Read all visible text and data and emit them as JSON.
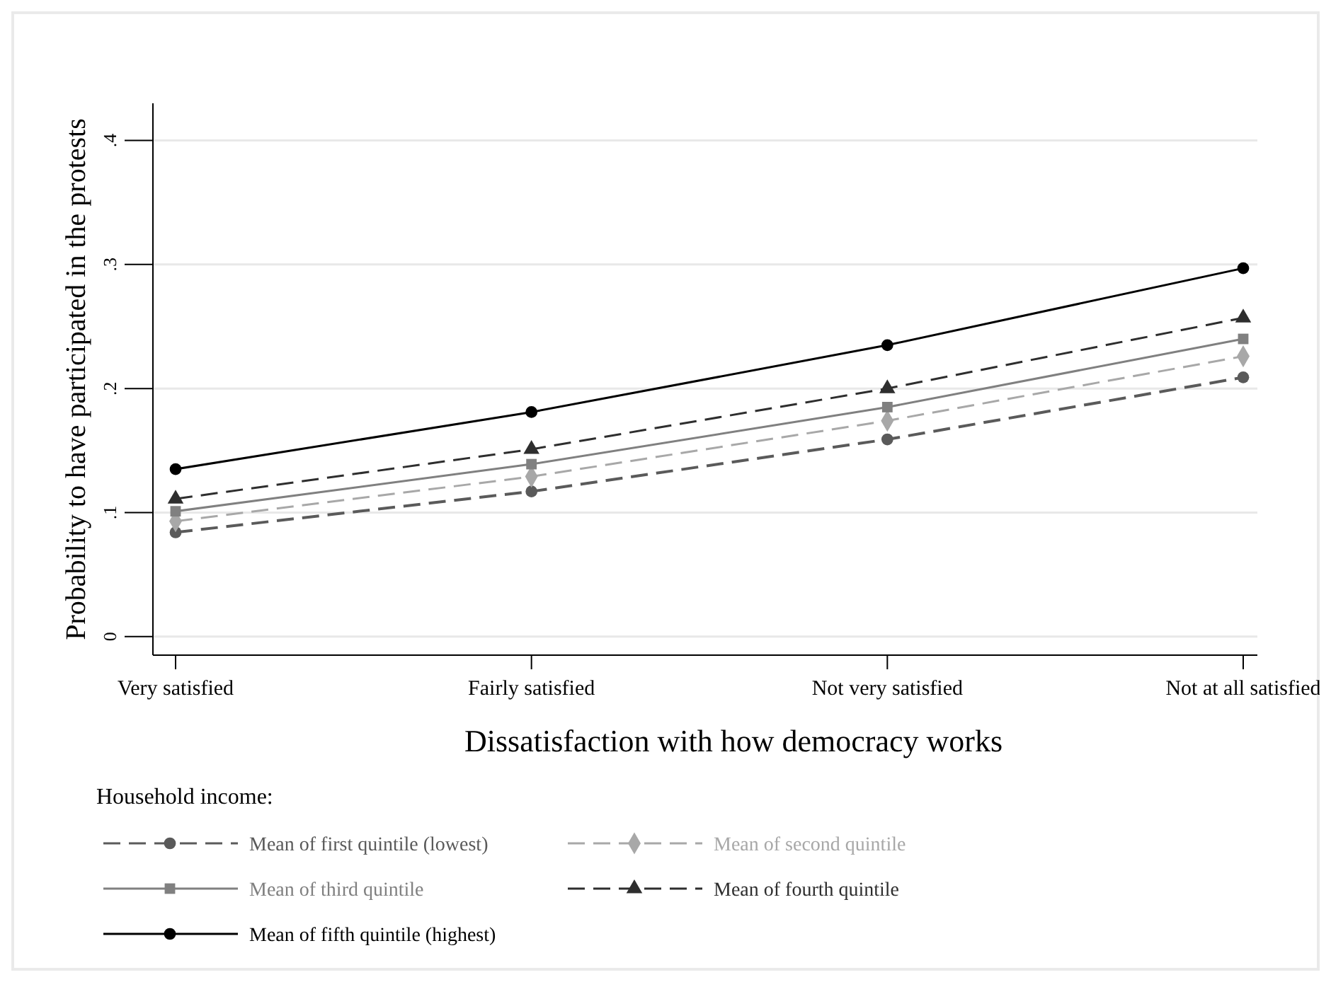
{
  "chart_data": {
    "type": "line",
    "xlabel": "Dissatisfaction with how democracy works",
    "ylabel": "Probability to have participated in the protests",
    "legend_title": "Household income:",
    "categories": [
      "Very satisfied",
      "Fairly satisfied",
      "Not very satisfied",
      "Not at all satisfied"
    ],
    "series": [
      {
        "name": "Mean of first quintile (lowest)",
        "color": "#5a5a5a",
        "marker": "circle",
        "line_style": "dashed",
        "values": [
          0.084,
          0.117,
          0.159,
          0.209
        ]
      },
      {
        "name": "Mean of second quintile",
        "color": "#a8a8a8",
        "marker": "diamond",
        "line_style": "dashed",
        "values": [
          0.093,
          0.129,
          0.174,
          0.226
        ]
      },
      {
        "name": "Mean of third quintile",
        "color": "#808080",
        "marker": "square",
        "line_style": "solid",
        "values": [
          0.101,
          0.139,
          0.185,
          0.24
        ]
      },
      {
        "name": "Mean of fourth quintile",
        "color": "#2e2e2e",
        "marker": "triangle",
        "line_style": "dashed",
        "values": [
          0.111,
          0.151,
          0.2,
          0.257
        ]
      },
      {
        "name": "Mean of fifth quintile (highest)",
        "color": "#000000",
        "marker": "circle",
        "line_style": "solid",
        "values": [
          0.135,
          0.181,
          0.235,
          0.297
        ]
      }
    ],
    "ylim": [
      -0.015,
      0.43
    ],
    "yticks": [
      {
        "value": 0,
        "label": "0"
      },
      {
        "value": 0.1,
        "label": ".1"
      },
      {
        "value": 0.2,
        "label": ".2"
      },
      {
        "value": 0.3,
        "label": ".3"
      },
      {
        "value": 0.4,
        "label": ".4"
      }
    ],
    "grid": "y",
    "legend": "bottom"
  }
}
